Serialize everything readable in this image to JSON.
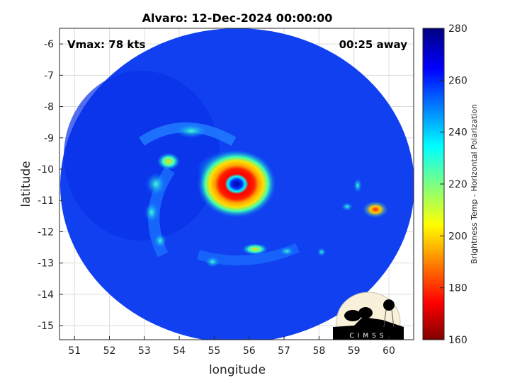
{
  "chart_data": {
    "type": "heatmap",
    "title": "Alvaro: 12-Dec-2024 00:00:00",
    "xlabel": "longitude",
    "ylabel": "latitude",
    "xlim": [
      50.57,
      60.71
    ],
    "ylim": [
      -15.45,
      -5.5
    ],
    "xticks": [
      "51",
      "52",
      "53",
      "54",
      "55",
      "56",
      "57",
      "58",
      "59",
      "60"
    ],
    "yticks": [
      "-6",
      "-7",
      "-8",
      "-9",
      "-10",
      "-11",
      "-12",
      "-13",
      "-14",
      "-15"
    ],
    "grid": true,
    "annotations": {
      "vmax": "Vmax: 78 kts",
      "time_away": "00:25 away"
    },
    "storm_center": {
      "lon": 55.6,
      "lat": -10.5
    },
    "colorbar": {
      "label": "Brightness Temp - Horizontal Polarization",
      "range": [
        160,
        280
      ],
      "ticks": [
        "160",
        "180",
        "200",
        "220",
        "240",
        "260",
        "280"
      ],
      "colormap": "jet"
    },
    "logo": "CIMSS"
  }
}
